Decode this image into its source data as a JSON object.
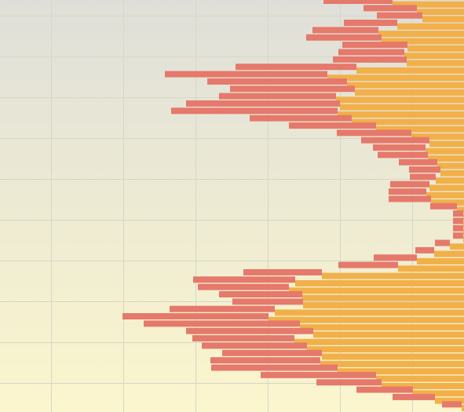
{
  "chart_data": {
    "type": "stacked-barh",
    "xlim": [
      0,
      591
    ],
    "reverse_x": true,
    "xticks": [
      66,
      158,
      250,
      342,
      434,
      526
    ],
    "grid": true,
    "categories": [
      null,
      null,
      null,
      null,
      null,
      null,
      null,
      null,
      null,
      null,
      null,
      null,
      null,
      null,
      null,
      null,
      null,
      null,
      null,
      null,
      null,
      null,
      null,
      null,
      null,
      null,
      null,
      null,
      null,
      null,
      null,
      null,
      null,
      null,
      null,
      null,
      null,
      null,
      null,
      null,
      null,
      null,
      null,
      null,
      null,
      null,
      null,
      null,
      null,
      null,
      null,
      null,
      null,
      null,
      null,
      null
    ],
    "series": [
      {
        "color": "#f2b04a",
        "values": [
          91,
          60,
          53,
          85,
          109,
          105,
          72,
          76,
          73,
          137,
          174,
          149,
          139,
          163,
          158,
          161,
          143,
          112,
          67,
          44,
          49,
          46,
          34,
          30,
          36,
          44,
          48,
          42,
          9,
          1,
          1,
          1,
          1,
          18,
          38,
          60,
          84,
          181,
          215,
          223,
          206,
          205,
          241,
          249,
          209,
          192,
          216,
          200,
          181,
          183,
          161,
          112,
          105,
          65,
          37,
          3
        ]
      },
      {
        "color": "#e5796b",
        "values": [
          88,
          68,
          58,
          68,
          84,
          96,
          83,
          84,
          94,
          154,
          207,
          178,
          159,
          149,
          196,
          212,
          130,
          111,
          95,
          87,
          67,
          64,
          49,
          40,
          33,
          50,
          48,
          54,
          34,
          13,
          13,
          13,
          13,
          19,
          24,
          55,
          76,
          100,
          130,
          116,
          106,
          90,
          134,
          186,
          199,
          162,
          130,
          134,
          127,
          140,
          161,
          147,
          83,
          72,
          54,
          25
        ]
      }
    ]
  }
}
